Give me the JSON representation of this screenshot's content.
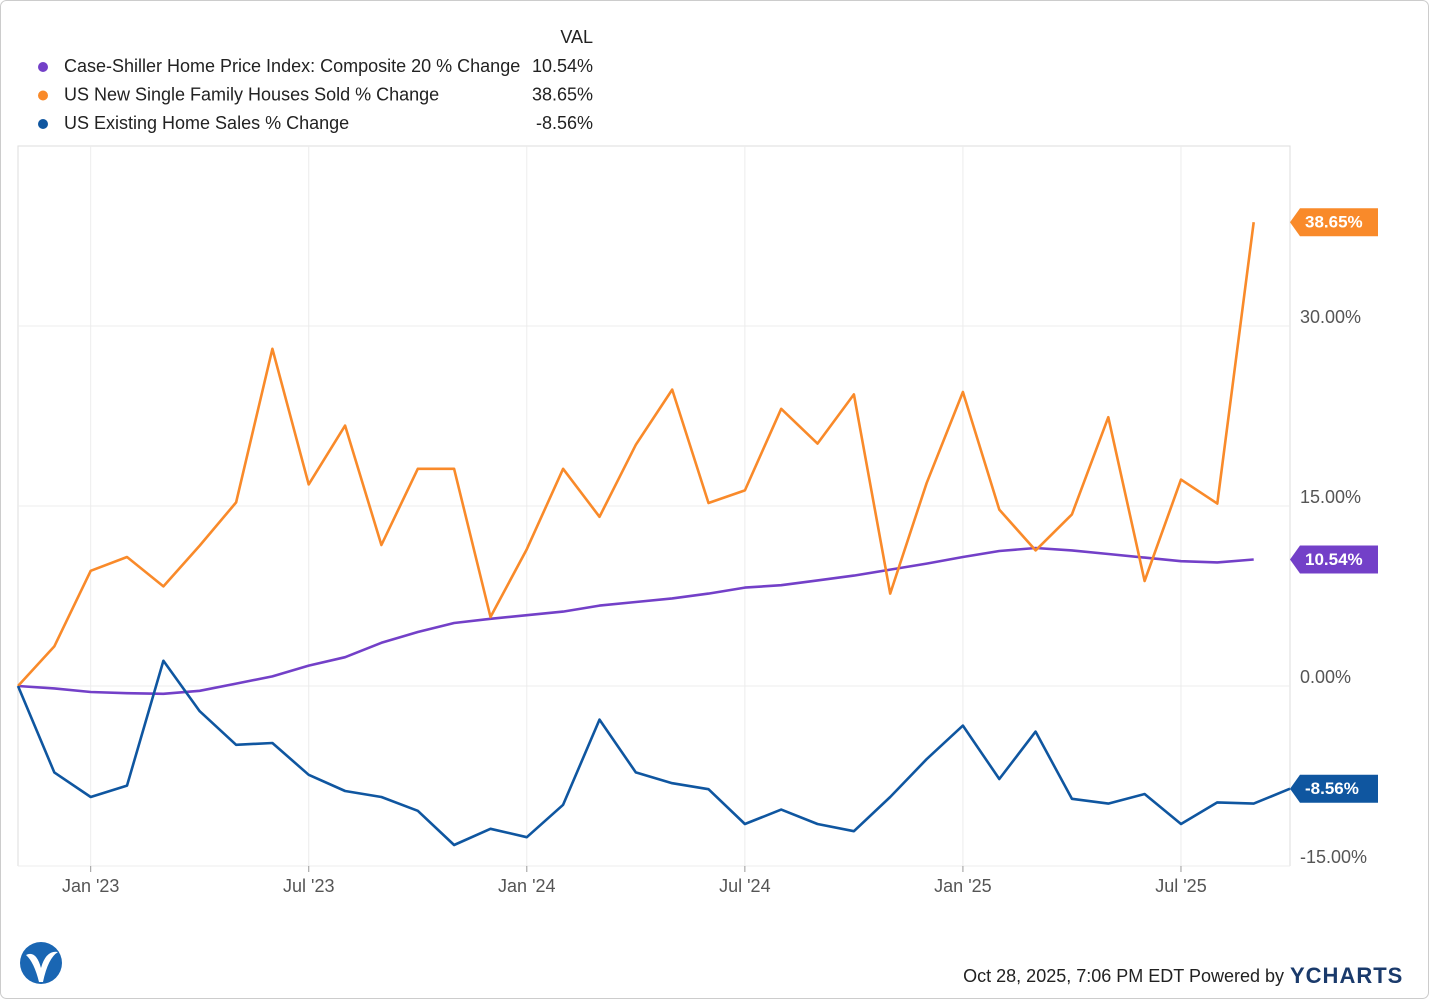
{
  "chart_data": {
    "type": "line",
    "legend_header": "VAL",
    "categories": [
      null,
      null,
      "Jan '23",
      null,
      null,
      null,
      null,
      null,
      "Jul '23",
      null,
      null,
      null,
      null,
      null,
      "Jan '24",
      null,
      null,
      null,
      null,
      null,
      "Jul '24",
      null,
      null,
      null,
      null,
      null,
      "Jan '25",
      null,
      null,
      null,
      null,
      null,
      "Jul '25",
      null,
      null,
      null
    ],
    "series": [
      {
        "name": "Case-Shiller Home Price Index: Composite 20 % Change",
        "color": "#7340c8",
        "value_label": "10.54%",
        "values": [
          0,
          -0.2,
          -0.5,
          -0.6,
          -0.65,
          -0.4,
          0.2,
          0.8,
          1.7,
          2.4,
          3.6,
          4.5,
          5.25,
          5.6,
          5.9,
          6.2,
          6.7,
          7.0,
          7.3,
          7.7,
          8.2,
          8.4,
          8.8,
          9.2,
          9.7,
          10.2,
          10.75,
          11.25,
          11.5,
          11.3,
          11.0,
          10.7,
          10.4,
          10.3,
          10.54,
          null
        ]
      },
      {
        "name": "US New Single Family Houses Sold % Change",
        "color": "#f98a2a",
        "value_label": "38.65%",
        "values": [
          0,
          3.3,
          9.6,
          10.75,
          8.3,
          11.7,
          15.3,
          28.1,
          16.8,
          21.7,
          11.75,
          18.1,
          18.1,
          5.75,
          11.4,
          18.1,
          14.1,
          20.1,
          24.7,
          15.25,
          16.3,
          23.1,
          20.2,
          24.3,
          7.7,
          16.9,
          24.5,
          14.7,
          11.3,
          14.3,
          22.4,
          8.75,
          17.2,
          15.2,
          38.65,
          null
        ]
      },
      {
        "name": "US Existing Home Sales % Change",
        "color": "#0f56a0",
        "value_label": "-8.56%",
        "values": [
          0,
          -7.2,
          -9.25,
          -8.3,
          2.1,
          -2.1,
          -4.9,
          -4.75,
          -7.4,
          -8.75,
          -9.25,
          -10.4,
          -13.25,
          -11.9,
          -12.6,
          -9.9,
          -2.8,
          -7.2,
          -8.1,
          -8.6,
          -11.5,
          -10.3,
          -11.5,
          -12.1,
          -9.25,
          -6.1,
          -3.3,
          -7.75,
          -3.8,
          -9.4,
          -9.8,
          -9.0,
          -11.5,
          -9.7,
          -9.8,
          -8.56
        ]
      }
    ],
    "ylim": [
      -15,
      45
    ],
    "yticks": [
      {
        "value": -15,
        "label": "-15.00%"
      },
      {
        "value": 0,
        "label": "0.00%"
      },
      {
        "value": 15,
        "label": "15.00%"
      },
      {
        "value": 30,
        "label": "30.00%"
      }
    ],
    "grid": true,
    "footer": "Oct 28, 2025, 7:06 PM EDT Powered by",
    "brand": "YCHARTS"
  }
}
